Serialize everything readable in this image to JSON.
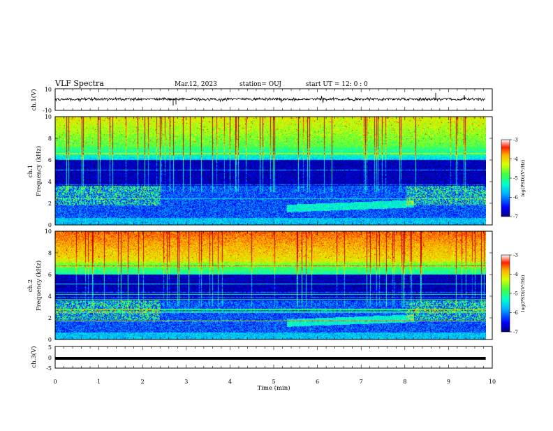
{
  "header": {
    "title": "VLF Spectra",
    "date": "Mar.12, 2023",
    "station": "station= OUJ",
    "start": "start  UT =   12: 0  : 0"
  },
  "chart_data": [
    {
      "type": "line",
      "name": "ch1-waveform",
      "ylabel": "ch.1(V)",
      "ylim": [
        -10,
        10
      ],
      "yticks": [
        "10",
        "-10"
      ],
      "xlim": [
        0,
        10
      ],
      "description_level": 0.0
    },
    {
      "type": "heatmap",
      "name": "ch1-spectrogram",
      "ylabel": "ch.1\nFrequency  (kHz)",
      "ylabel_lines": [
        "ch.1",
        "Frequency  (kHz)"
      ],
      "ylim": [
        0,
        10
      ],
      "yticks": [
        "0",
        "2",
        "4",
        "6",
        "8",
        "10"
      ],
      "xlim": [
        0,
        10
      ],
      "data_extent_min": [
        0,
        9.85
      ],
      "colorbar": {
        "label": "log(PSD)(V²/Hz)",
        "range": [
          -7,
          -3
        ],
        "ticks": [
          "-3",
          "-4",
          "-5",
          "-6",
          "-7"
        ]
      }
    },
    {
      "type": "heatmap",
      "name": "ch2-spectrogram",
      "ylabel_lines": [
        "ch.2",
        "Frequency  (kHz)"
      ],
      "ylim": [
        0,
        10
      ],
      "yticks": [
        "0",
        "2",
        "4",
        "6",
        "8",
        "10"
      ],
      "xlim": [
        0,
        10
      ],
      "data_extent_min": [
        0,
        9.85
      ],
      "colorbar": {
        "label": "log(PSD)(V²/Hz)",
        "range": [
          -7,
          -3
        ],
        "ticks": [
          "-3",
          "-4",
          "-5",
          "-6",
          "-7"
        ]
      }
    },
    {
      "type": "line",
      "name": "ch3-waveform",
      "ylabel": "ch.3(V)",
      "ylim": [
        -5,
        5
      ],
      "yticks": [
        "5",
        "0",
        "-5"
      ],
      "xlim": [
        0,
        10
      ],
      "level": -0.5
    }
  ],
  "xaxis": {
    "label": "Time  (min)",
    "ticks": [
      "0",
      "1",
      "2",
      "3",
      "4",
      "5",
      "6",
      "7",
      "8",
      "9",
      "10"
    ]
  },
  "colors": {
    "colormap": [
      "#00007f",
      "#0000ff",
      "#00b4ff",
      "#00ffd0",
      "#40ff40",
      "#d8ff00",
      "#ffb000",
      "#ff2000",
      "#c00000"
    ]
  }
}
